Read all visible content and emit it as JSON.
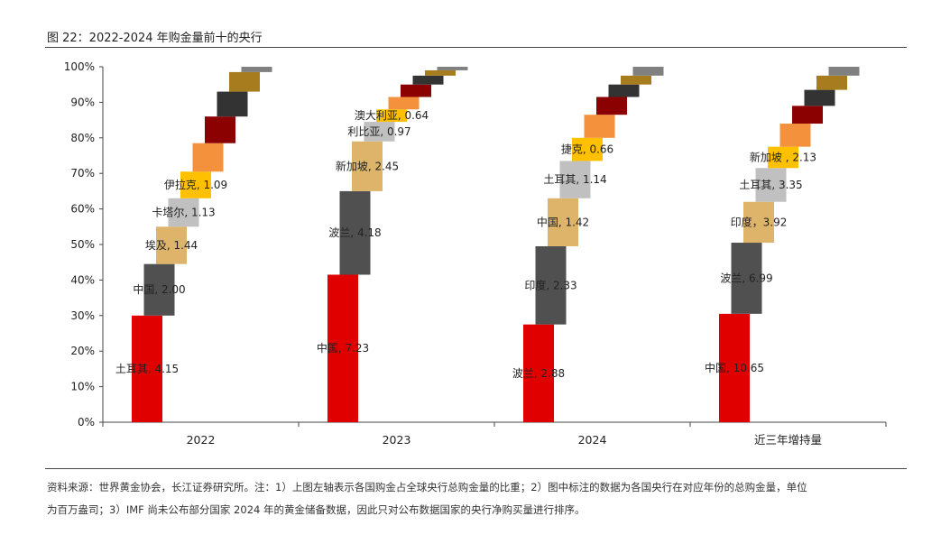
{
  "header": {
    "title": "图 22：2022-2024 年购金量前十的央行"
  },
  "footer": {
    "note_line1": "资料来源：世界黄金协会，长江证券研究所。注：1）上图左轴表示各国购金占全球央行总购金量的比重；2）图中标注的数据为各国央行在对应年份的总购金量，单位",
    "note_line2": "为百万盎司；3）IMF 尚未公布部分国家 2024 年的黄金储备数据，因此只对公布数据国家的央行净购买量进行排序。"
  },
  "chart_data": {
    "type": "bar",
    "subtype": "stacked-waterfall",
    "y_unit": "percent",
    "ylim": [
      0,
      100
    ],
    "yticks": [
      "0%",
      "10%",
      "20%",
      "30%",
      "40%",
      "50%",
      "60%",
      "70%",
      "80%",
      "90%",
      "100%"
    ],
    "grid": false,
    "categories": [
      "2022",
      "2023",
      "2024",
      "近三年增持量"
    ],
    "groups": [
      {
        "category": "2022",
        "segments": [
          {
            "label": "土耳其, 4.15",
            "start": 0,
            "end": 30,
            "color": "#e00000"
          },
          {
            "label": "中国, 2.00",
            "start": 30,
            "end": 44.5,
            "color": "#505050"
          },
          {
            "label": "埃及, 1.44",
            "start": 44.5,
            "end": 55,
            "color": "#ddb46a"
          },
          {
            "label": "卡塔尔, 1.13",
            "start": 55,
            "end": 63,
            "color": "#c0c0c0"
          },
          {
            "label": "伊拉克, 1.09",
            "start": 63,
            "end": 70.5,
            "color": "#ffc000"
          },
          {
            "label": "",
            "start": 70.5,
            "end": 78.5,
            "color": "#f4913c"
          },
          {
            "label": "",
            "start": 78.5,
            "end": 86,
            "color": "#8b0000"
          },
          {
            "label": "",
            "start": 86,
            "end": 93,
            "color": "#333333"
          },
          {
            "label": "",
            "start": 93,
            "end": 98.5,
            "color": "#a67c1f"
          },
          {
            "label": "",
            "start": 98.5,
            "end": 100,
            "color": "#808080"
          }
        ]
      },
      {
        "category": "2023",
        "segments": [
          {
            "label": "中国, 7.23",
            "start": 0,
            "end": 41.5,
            "color": "#e00000"
          },
          {
            "label": "波兰, 4.18",
            "start": 41.5,
            "end": 65,
            "color": "#505050"
          },
          {
            "label": "新加坡, 2.45",
            "start": 65,
            "end": 79,
            "color": "#ddb46a"
          },
          {
            "label": "利比亚, 0.97",
            "start": 79,
            "end": 84.5,
            "color": "#c0c0c0"
          },
          {
            "label": "澳大利亚, 0.64",
            "start": 84.5,
            "end": 88,
            "color": "#ffc000"
          },
          {
            "label": "",
            "start": 88,
            "end": 91.5,
            "color": "#f4913c"
          },
          {
            "label": "",
            "start": 91.5,
            "end": 95,
            "color": "#8b0000"
          },
          {
            "label": "",
            "start": 95,
            "end": 97.5,
            "color": "#333333"
          },
          {
            "label": "",
            "start": 97.5,
            "end": 99,
            "color": "#a67c1f"
          },
          {
            "label": "",
            "start": 99,
            "end": 100,
            "color": "#808080"
          }
        ]
      },
      {
        "category": "2024",
        "segments": [
          {
            "label": "波兰, 2.88",
            "start": 0,
            "end": 27.5,
            "color": "#e00000"
          },
          {
            "label": "印度, 2.33",
            "start": 27.5,
            "end": 49.5,
            "color": "#505050"
          },
          {
            "label": "中国, 1.42",
            "start": 49.5,
            "end": 63,
            "color": "#ddb46a"
          },
          {
            "label": "土耳其, 1.14",
            "start": 63,
            "end": 73.5,
            "color": "#c0c0c0"
          },
          {
            "label": "捷克, 0.66",
            "start": 73.5,
            "end": 80,
            "color": "#ffc000"
          },
          {
            "label": "",
            "start": 80,
            "end": 86.5,
            "color": "#f4913c"
          },
          {
            "label": "",
            "start": 86.5,
            "end": 91.5,
            "color": "#8b0000"
          },
          {
            "label": "",
            "start": 91.5,
            "end": 95,
            "color": "#333333"
          },
          {
            "label": "",
            "start": 95,
            "end": 97.5,
            "color": "#a67c1f"
          },
          {
            "label": "",
            "start": 97.5,
            "end": 100,
            "color": "#808080"
          }
        ]
      },
      {
        "category": "近三年增持量",
        "segments": [
          {
            "label": "中国, 10.65",
            "start": 0,
            "end": 30.5,
            "color": "#e00000"
          },
          {
            "label": "波兰, 6.99",
            "start": 30.5,
            "end": 50.5,
            "color": "#505050"
          },
          {
            "label": "印度，3.92",
            "start": 50.5,
            "end": 62,
            "color": "#ddb46a"
          },
          {
            "label": "土耳其, 3.35",
            "start": 62,
            "end": 71.5,
            "color": "#c0c0c0"
          },
          {
            "label": "新加坡 , 2.13",
            "start": 71.5,
            "end": 77.5,
            "color": "#ffc000"
          },
          {
            "label": "",
            "start": 77.5,
            "end": 84,
            "color": "#f4913c"
          },
          {
            "label": "",
            "start": 84,
            "end": 89,
            "color": "#8b0000"
          },
          {
            "label": "",
            "start": 89,
            "end": 93.5,
            "color": "#333333"
          },
          {
            "label": "",
            "start": 93.5,
            "end": 97.5,
            "color": "#a67c1f"
          },
          {
            "label": "",
            "start": 97.5,
            "end": 100,
            "color": "#808080"
          }
        ]
      }
    ]
  }
}
